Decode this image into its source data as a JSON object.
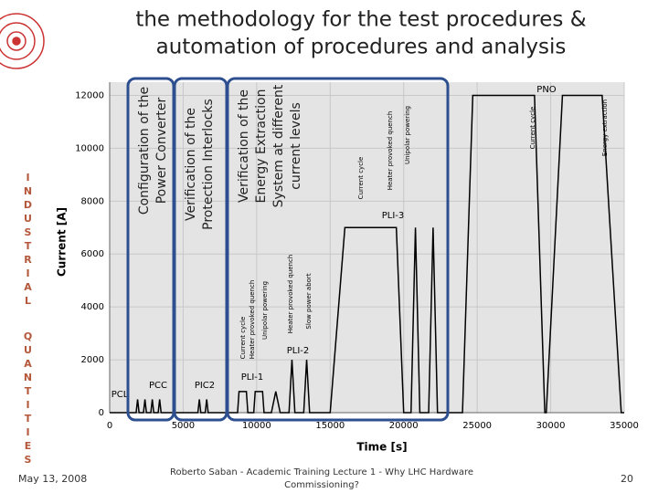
{
  "slide": {
    "title_lines": [
      "the methodology  for the test procedures &",
      "automation of procedures and analysis"
    ],
    "side_words": [
      "INDUSTRIAL",
      "QUANTITIES"
    ],
    "boxes": [
      {
        "lines": [
          "Configuration of the",
          "Power Converter"
        ]
      },
      {
        "lines": [
          "Verification of the",
          "Protection Interlocks"
        ]
      },
      {
        "lines": [
          "Verification of the",
          "Energy Extraction",
          "System at different",
          "current levels"
        ]
      }
    ],
    "date": "May 13, 2008",
    "footer_lines": [
      "Roberto Saban - Academic Training Lecture 1 - Why LHC Hardware",
      "Commissioning?"
    ],
    "page_number": "20"
  },
  "chart_data": {
    "type": "line",
    "x_label": "Time [s]",
    "y_label": "Current [A]",
    "x": [
      0,
      1800,
      1900,
      2000,
      2300,
      2400,
      2500,
      2800,
      2900,
      3000,
      3300,
      3400,
      3500,
      6000,
      6100,
      6200,
      6500,
      6600,
      6700,
      8700,
      8800,
      9300,
      9400,
      9800,
      9900,
      10400,
      10500,
      11000,
      11300,
      11600,
      12200,
      12400,
      12600,
      13200,
      13400,
      13600,
      15000,
      16000,
      19500,
      20000,
      20500,
      20800,
      21100,
      21700,
      22000,
      22300,
      24000,
      24700,
      28900,
      29600,
      29700,
      30800,
      33500,
      34800,
      35000
    ],
    "series": [
      {
        "color": "#000000",
        "values": [
          0,
          0,
          500,
          0,
          0,
          500,
          0,
          0,
          500,
          0,
          0,
          500,
          0,
          0,
          500,
          0,
          0,
          500,
          0,
          0,
          800,
          800,
          0,
          0,
          800,
          800,
          0,
          0,
          800,
          0,
          0,
          2000,
          0,
          0,
          2000,
          0,
          0,
          7000,
          7000,
          0,
          0,
          7000,
          0,
          0,
          7000,
          0,
          0,
          12000,
          12000,
          0,
          0,
          12000,
          12000,
          0,
          0
        ]
      }
    ],
    "xlim": [
      0,
      35000
    ],
    "ylim": [
      0,
      12500
    ],
    "xticks": [
      0,
      5000,
      10000,
      15000,
      20000,
      25000,
      30000,
      35000
    ],
    "yticks": [
      0,
      2000,
      4000,
      6000,
      8000,
      10000,
      12000
    ],
    "grid": true,
    "annotations": [
      "PNO",
      "PLI-3",
      "PLI-2",
      "PLI-1",
      "PIC2",
      "PCC",
      "PCL",
      "Current cycle",
      "Heater provoked quench",
      "Unipolar powering",
      "Current cycle",
      "Energy extraction",
      "Current cycle",
      "Heater provoked quench",
      "Unipolar powering",
      "Heater provoked quench",
      "Slow power abort"
    ]
  }
}
